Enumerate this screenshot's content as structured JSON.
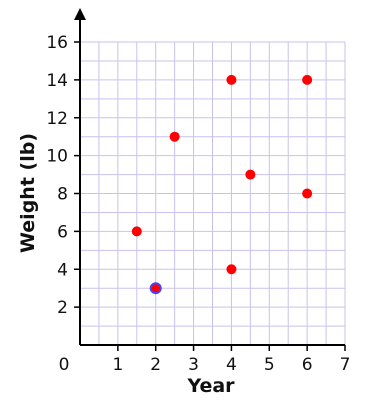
{
  "chart_data": {
    "type": "scatter",
    "title": "",
    "xlabel": "Year",
    "ylabel": "Weight (lb)",
    "xlim": [
      0,
      7
    ],
    "ylim": [
      0,
      16
    ],
    "x_ticks": [
      1,
      2,
      3,
      4,
      5,
      6,
      7
    ],
    "y_ticks": [
      2,
      4,
      6,
      8,
      10,
      12,
      14,
      16
    ],
    "origin_label": "0",
    "grid": true,
    "colors": {
      "grid": "#c9c2ee",
      "axis": "#000000",
      "point": "#ff0000",
      "highlight_outline": "#4444ff"
    },
    "series": [
      {
        "points": [
          {
            "x": 1.5,
            "y": 6
          },
          {
            "x": 2,
            "y": 3,
            "highlighted": true
          },
          {
            "x": 2.5,
            "y": 11
          },
          {
            "x": 4,
            "y": 14
          },
          {
            "x": 4,
            "y": 4
          },
          {
            "x": 4.5,
            "y": 9
          },
          {
            "x": 6,
            "y": 14
          },
          {
            "x": 6,
            "y": 8
          }
        ]
      }
    ]
  }
}
